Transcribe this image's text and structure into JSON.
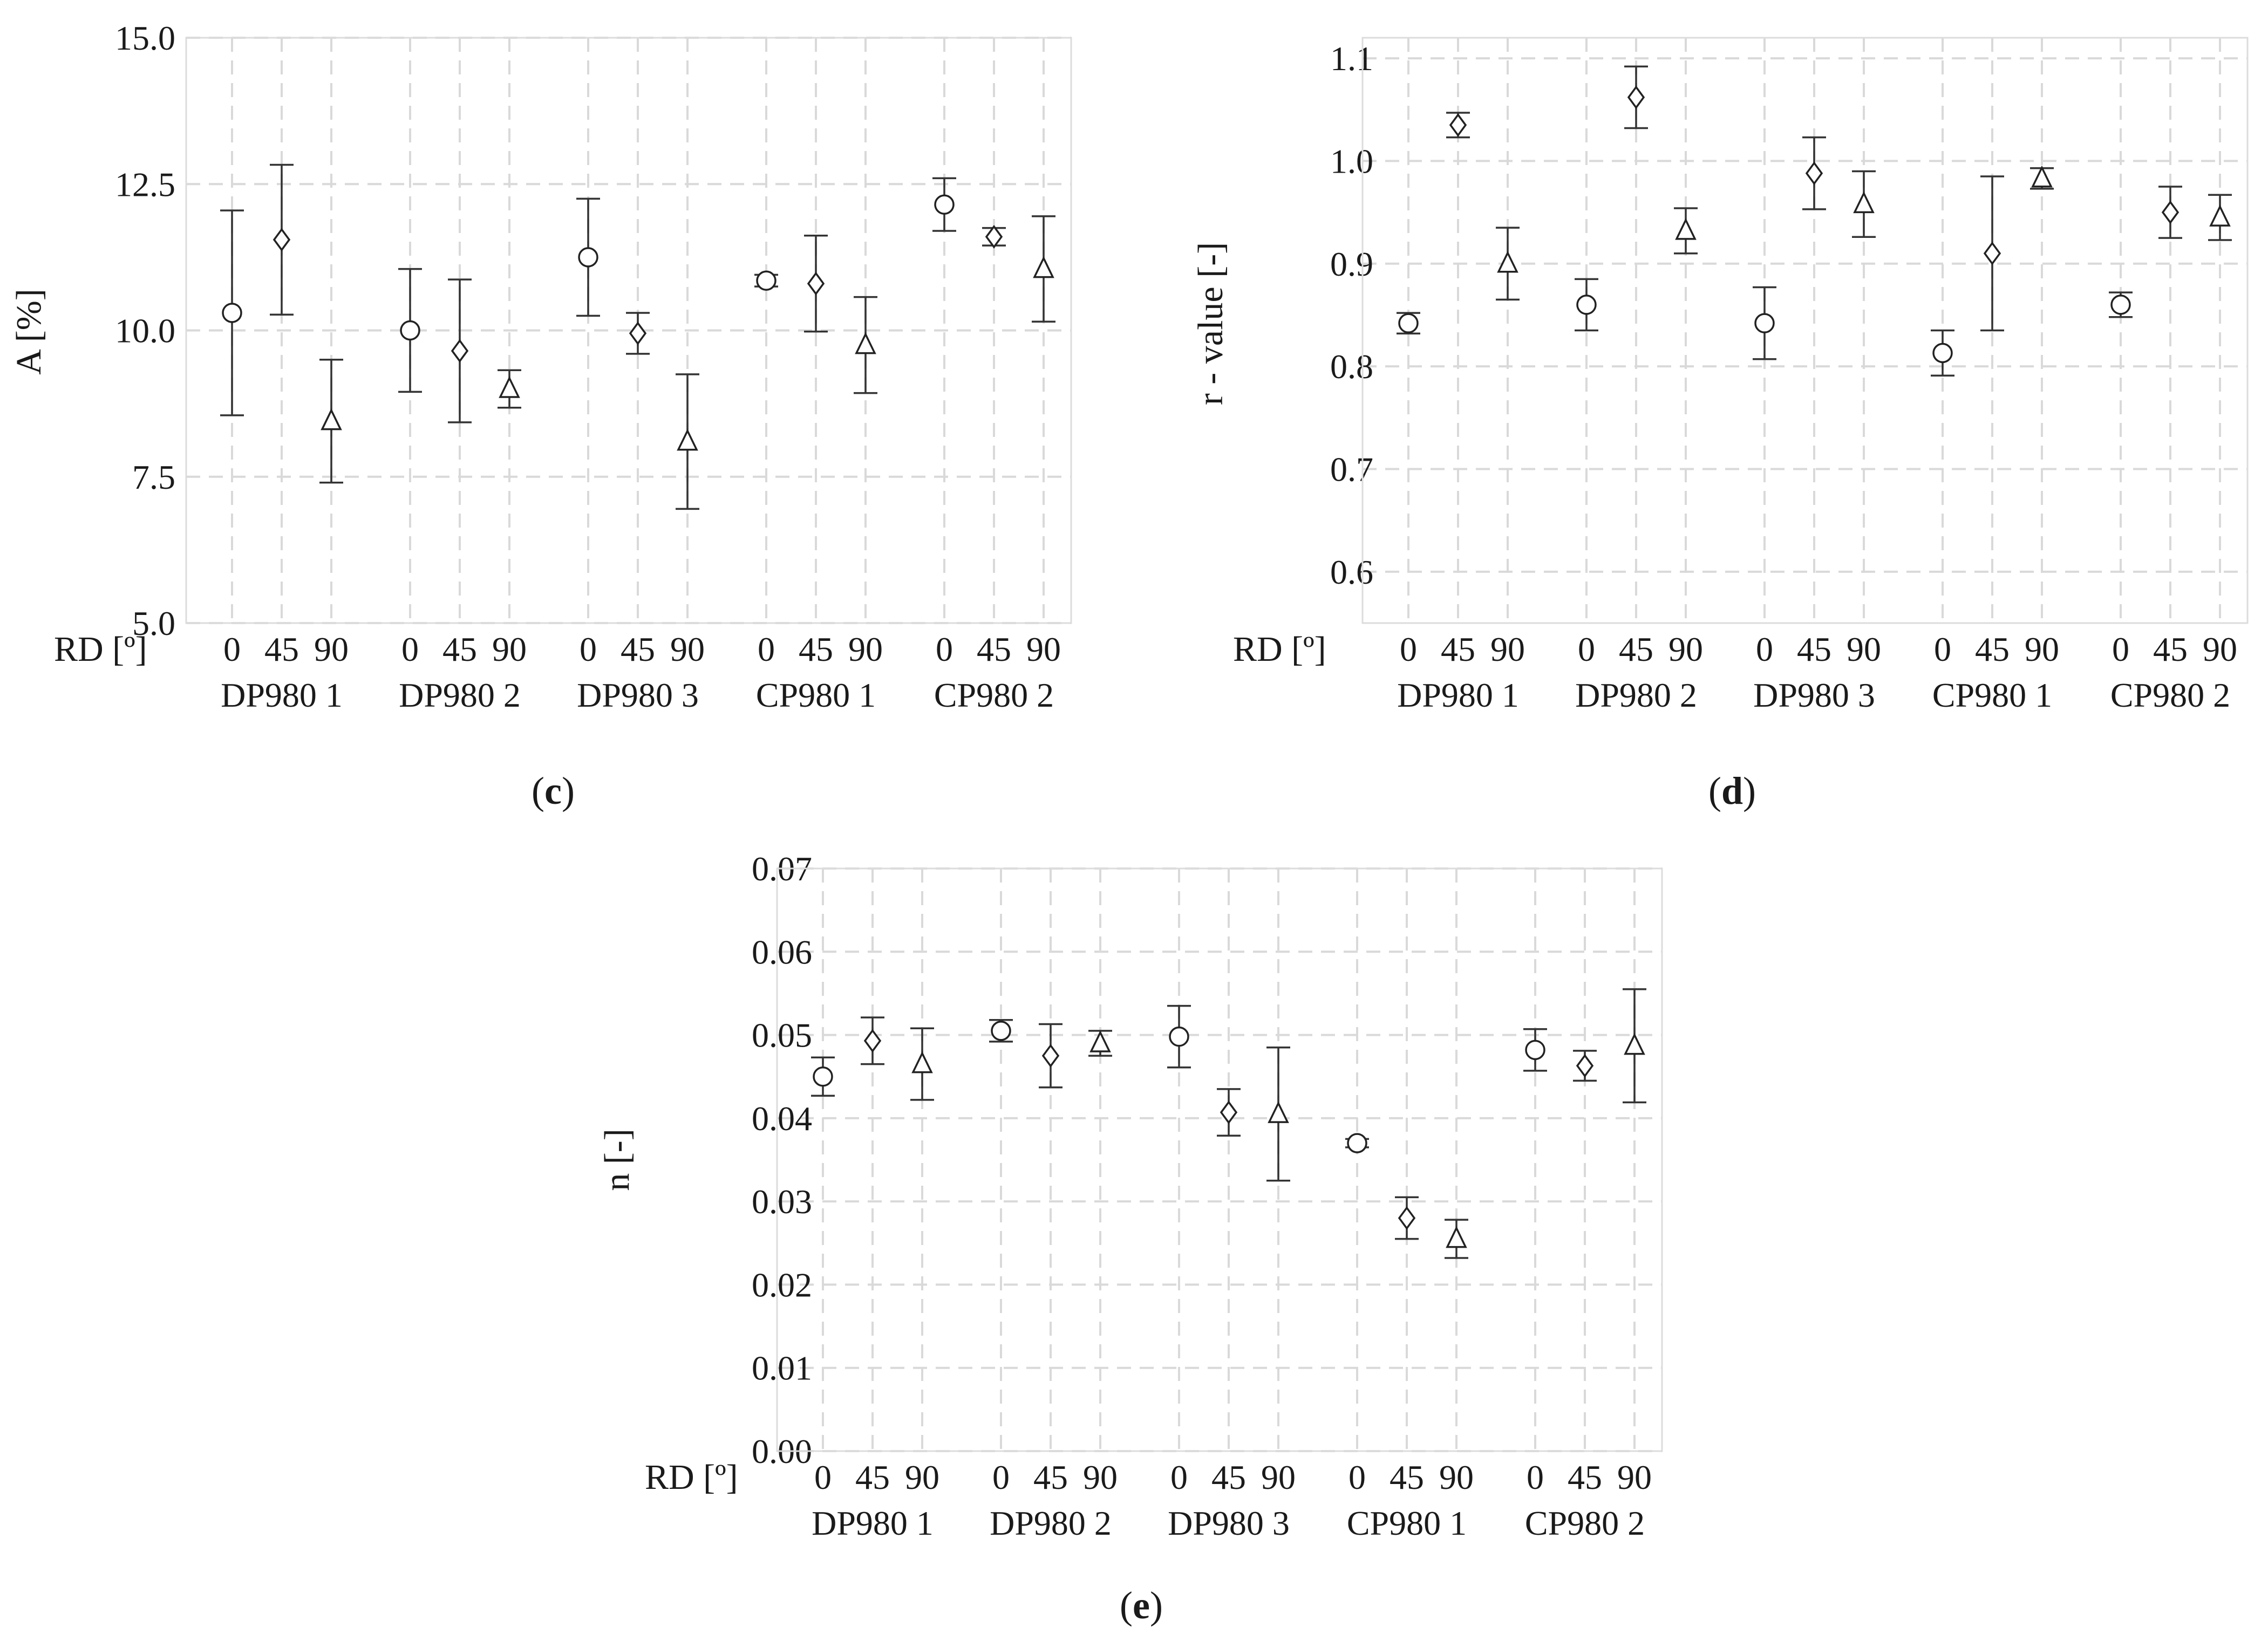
{
  "colors": {
    "marker": "#222222",
    "grid": "#d9d9d9",
    "text": "#1a1a1a"
  },
  "chart_data": [
    {
      "type": "scatter",
      "panel_label": "(c)",
      "panel_letter": "c",
      "ylabel": "A [%]",
      "xlabel": "RD [º]",
      "ylim": [
        5.0,
        15.0
      ],
      "yticks": [
        "5.0",
        "7.5",
        "10.0",
        "12.5",
        "15.0"
      ],
      "groups": [
        "DP980 1",
        "DP980 2",
        "DP980 3",
        "CP980 1",
        "CP980 2"
      ],
      "directions": [
        "0",
        "45",
        "90"
      ],
      "marker_by_direction": {
        "0": "circle",
        "45": "diamond",
        "90": "triangle"
      },
      "series": [
        {
          "name": "DP980 1",
          "values": [
            10.3,
            11.55,
            8.45
          ],
          "errors": [
            1.75,
            1.28,
            1.05
          ]
        },
        {
          "name": "DP980 2",
          "values": [
            10.0,
            9.65,
            9.0
          ],
          "errors": [
            1.05,
            1.22,
            0.32
          ]
        },
        {
          "name": "DP980 3",
          "values": [
            11.25,
            9.95,
            8.1
          ],
          "errors": [
            1.0,
            0.35,
            1.15
          ]
        },
        {
          "name": "CP980 1",
          "values": [
            10.85,
            10.8,
            9.75
          ],
          "errors": [
            0.1,
            0.82,
            0.82
          ]
        },
        {
          "name": "CP980 2",
          "values": [
            12.15,
            11.6,
            11.05
          ],
          "errors": [
            0.45,
            0.15,
            0.9
          ]
        }
      ]
    },
    {
      "type": "scatter",
      "panel_label": "(d)",
      "panel_letter": "d",
      "ylabel": "r - value [-]",
      "xlabel": "RD [º]",
      "ylim": [
        0.55,
        1.12
      ],
      "yticks": [
        "0.6",
        "0.7",
        "0.8",
        "0.9",
        "1.0",
        "1.1"
      ],
      "groups": [
        "DP980 1",
        "DP980 2",
        "DP980 3",
        "CP980 1",
        "CP980 2"
      ],
      "directions": [
        "0",
        "45",
        "90"
      ],
      "marker_by_direction": {
        "0": "circle",
        "45": "diamond",
        "90": "triangle"
      },
      "series": [
        {
          "name": "DP980 1",
          "values": [
            0.842,
            1.035,
            0.9
          ],
          "errors": [
            0.01,
            0.012,
            0.035
          ]
        },
        {
          "name": "DP980 2",
          "values": [
            0.86,
            1.062,
            0.932
          ],
          "errors": [
            0.025,
            0.03,
            0.022
          ]
        },
        {
          "name": "DP980 3",
          "values": [
            0.842,
            0.988,
            0.958
          ],
          "errors": [
            0.035,
            0.035,
            0.032
          ]
        },
        {
          "name": "CP980 1",
          "values": [
            0.813,
            0.91,
            0.983
          ],
          "errors": [
            0.022,
            0.075,
            0.01
          ]
        },
        {
          "name": "CP980 2",
          "values": [
            0.86,
            0.95,
            0.945
          ],
          "errors": [
            0.012,
            0.025,
            0.022
          ]
        }
      ]
    },
    {
      "type": "scatter",
      "panel_label": "(e)",
      "panel_letter": "e",
      "ylabel": "n [-]",
      "xlabel": "RD [º]",
      "ylim": [
        0.0,
        0.07
      ],
      "yticks": [
        "0.00",
        "0.01",
        "0.02",
        "0.03",
        "0.04",
        "0.05",
        "0.06",
        "0.07"
      ],
      "groups": [
        "DP980 1",
        "DP980 2",
        "DP980 3",
        "CP980 1",
        "CP980 2"
      ],
      "directions": [
        "0",
        "45",
        "90"
      ],
      "marker_by_direction": {
        "0": "circle",
        "45": "diamond",
        "90": "triangle"
      },
      "series": [
        {
          "name": "DP980 1",
          "values": [
            0.045,
            0.0493,
            0.0465
          ],
          "errors": [
            0.0023,
            0.0028,
            0.0043
          ]
        },
        {
          "name": "DP980 2",
          "values": [
            0.0505,
            0.0475,
            0.049
          ],
          "errors": [
            0.0013,
            0.0038,
            0.0015
          ]
        },
        {
          "name": "DP980 3",
          "values": [
            0.0498,
            0.0407,
            0.0405
          ],
          "errors": [
            0.0037,
            0.0028,
            0.008
          ]
        },
        {
          "name": "CP980 1",
          "values": [
            0.037,
            0.028,
            0.0255
          ],
          "errors": [
            0.0005,
            0.0025,
            0.0023
          ]
        },
        {
          "name": "CP980 2",
          "values": [
            0.0482,
            0.0463,
            0.0487
          ],
          "errors": [
            0.0025,
            0.0018,
            0.0068
          ]
        }
      ]
    }
  ]
}
